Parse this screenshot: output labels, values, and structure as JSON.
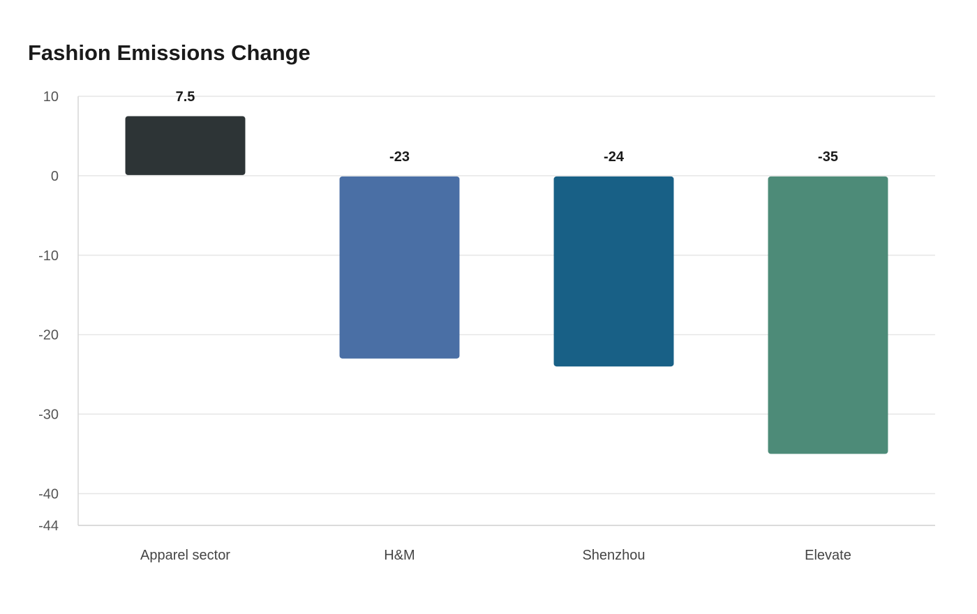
{
  "chart_data": {
    "type": "bar",
    "title": "Fashion Emissions Change",
    "xlabel": "",
    "ylabel": "",
    "categories": [
      "Apparel sector",
      "H&M",
      "Shenzhou",
      "Elevate"
    ],
    "values": [
      7.5,
      -23,
      -24,
      -35
    ],
    "value_labels": [
      "7.5",
      "-23",
      "-24",
      "-35"
    ],
    "colors": [
      "#2d3436",
      "#4a6fa5",
      "#186086",
      "#4d8b78"
    ],
    "ylim": [
      -44,
      10
    ],
    "yticks": [
      10,
      0,
      -10,
      -20,
      -30,
      -40,
      -44
    ],
    "grid": true,
    "legend": "none"
  }
}
